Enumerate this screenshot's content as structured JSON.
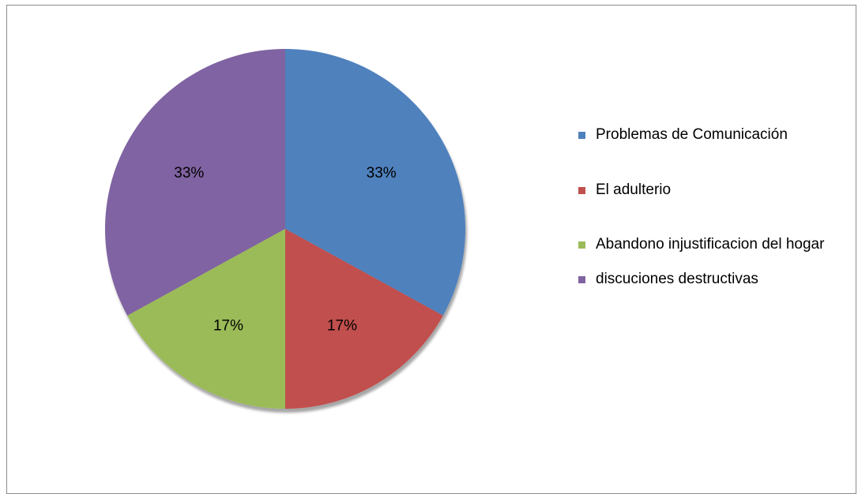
{
  "chart_data": {
    "type": "pie",
    "title": "",
    "categories": [
      "Problemas de Comunicación",
      "El adulterio",
      "Abandono injustificacion del hogar",
      "discuciones destructivas"
    ],
    "values": [
      33,
      17,
      17,
      33
    ],
    "data_labels": [
      "33%",
      "17%",
      "17%",
      "33%"
    ],
    "colors": [
      "#4f81bd",
      "#c0504d",
      "#9bbb59",
      "#8064a2"
    ],
    "legend_position": "right"
  }
}
